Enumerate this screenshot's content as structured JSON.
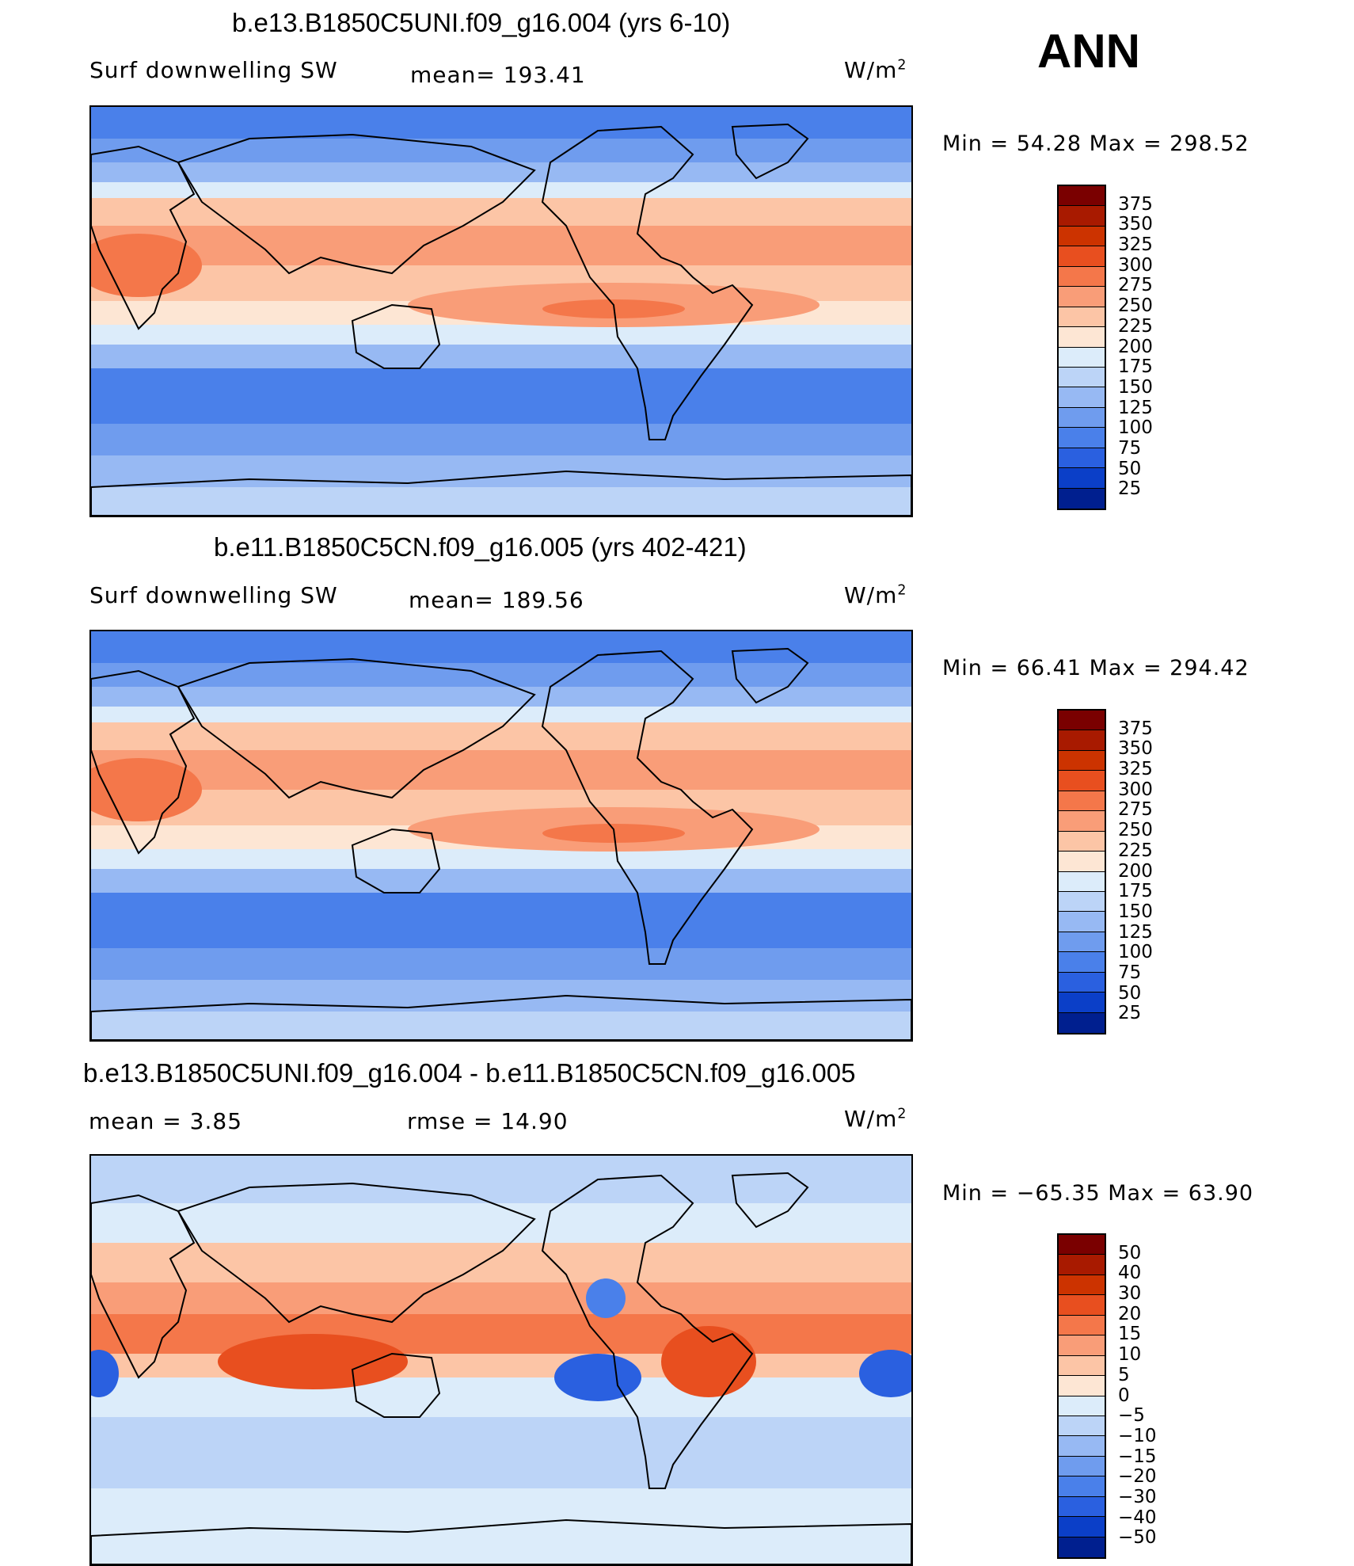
{
  "season_label": "ANN",
  "units": {
    "base": "W/m",
    "exponent": "2"
  },
  "panels": [
    {
      "title": "b.e13.B1850C5UNI.f09_g16.004 (yrs 6-10)",
      "variable": "Surf  downwelling SW",
      "stat_text": "mean=  193.41",
      "min_max": "Min  =    54.28  Max  =  298.52",
      "kind": "field"
    },
    {
      "title": "b.e11.B1850C5CN.f09_g16.005 (yrs 402-421)",
      "variable": "Surf  downwelling SW",
      "stat_text": "mean=  189.56",
      "min_max": "Min  =    66.41  Max  =  294.42",
      "kind": "field"
    },
    {
      "title": "b.e13.B1850C5UNI.f09_g16.004 - b.e11.B1850C5CN.f09_g16.005",
      "mean_text": "mean  =      3.85",
      "rmse_text": "rmse  =     14.90",
      "min_max": "Min  =  −65.35  Max  =    63.90",
      "kind": "diff"
    }
  ],
  "legends": {
    "field": {
      "levels": [
        "375",
        "350",
        "325",
        "300",
        "275",
        "250",
        "225",
        "200",
        "175",
        "150",
        "125",
        "100",
        "75",
        "50",
        "25"
      ],
      "colors": [
        "#7a0000",
        "#a81a00",
        "#cc3300",
        "#e84f1f",
        "#f4774a",
        "#f99d78",
        "#fcc5a6",
        "#fde6d4",
        "#dcecfa",
        "#bcd4f7",
        "#97b9f3",
        "#6f9cee",
        "#4a80ea",
        "#2a60e0",
        "#0b3fc8",
        "#001f8f"
      ]
    },
    "diff": {
      "levels": [
        "50",
        "40",
        "30",
        "20",
        "15",
        "10",
        "5",
        "0",
        "−5",
        "−10",
        "−15",
        "−20",
        "−30",
        "−40",
        "−50"
      ],
      "colors": [
        "#7a0000",
        "#a81a00",
        "#cc3300",
        "#e84f1f",
        "#f4774a",
        "#f99d78",
        "#fcc5a6",
        "#fde6d4",
        "#dcecfa",
        "#bcd4f7",
        "#97b9f3",
        "#6f9cee",
        "#4a80ea",
        "#2a60e0",
        "#0b3fc8",
        "#001f8f"
      ]
    }
  },
  "colors": {
    "ocean_high_lat": "#4a80ea",
    "ocean_mid": "#97b9f3",
    "subtropics": "#f99d78",
    "tropics": "#fcc5a6",
    "coast": "#000000"
  }
}
